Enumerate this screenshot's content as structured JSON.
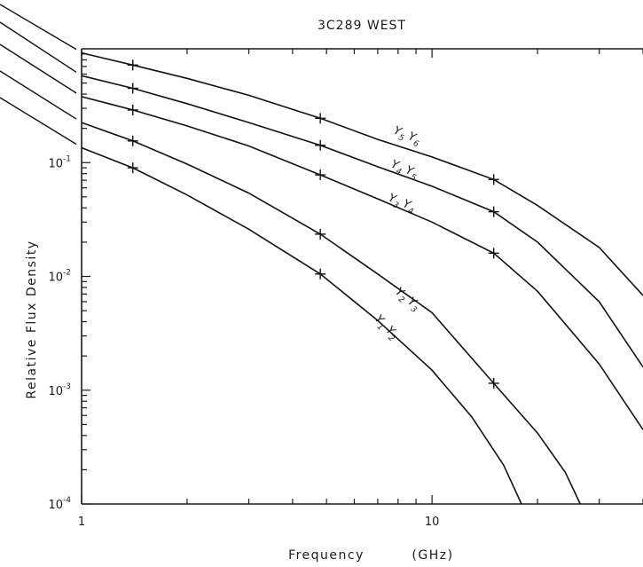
{
  "chart_data": {
    "type": "line",
    "title": "3C289 WEST",
    "xlabel": "Frequency",
    "xunit": "(GHz)",
    "ylabel": "Relative Flux Density",
    "x_scale": "log",
    "y_scale": "log",
    "xlim": [
      1,
      40
    ],
    "ylim": [
      0.0001,
      1
    ],
    "x_ticks": [
      {
        "value": 1,
        "label": "1"
      },
      {
        "value": 10,
        "label": "10"
      }
    ],
    "y_ticks": [
      {
        "value": 0.1,
        "label": "10",
        "exp": "-1"
      },
      {
        "value": 0.01,
        "label": "10",
        "exp": "-2"
      },
      {
        "value": 0.001,
        "label": "10",
        "exp": "-3"
      },
      {
        "value": 0.0001,
        "label": "10",
        "exp": "-4"
      }
    ],
    "series": [
      {
        "label_a": "Y",
        "sub_a": "5",
        "label_b": "Y",
        "sub_b": "6",
        "points": [
          [
            1,
            0.92
          ],
          [
            1.4,
            0.72
          ],
          [
            2,
            0.55
          ],
          [
            3,
            0.39
          ],
          [
            4.8,
            0.245
          ],
          [
            7,
            0.16
          ],
          [
            10,
            0.112
          ],
          [
            15,
            0.071
          ],
          [
            20,
            0.042
          ],
          [
            30,
            0.018
          ],
          [
            40,
            0.0068
          ]
        ],
        "markers": [
          1.4,
          4.8,
          15
        ]
      },
      {
        "label_a": "Y",
        "sub_a": "4",
        "label_b": "Y",
        "sub_b": "5",
        "points": [
          [
            1,
            0.58
          ],
          [
            1.4,
            0.45
          ],
          [
            2,
            0.33
          ],
          [
            3,
            0.225
          ],
          [
            4.8,
            0.142
          ],
          [
            7,
            0.092
          ],
          [
            10,
            0.062
          ],
          [
            15,
            0.037
          ],
          [
            20,
            0.02
          ],
          [
            30,
            0.006
          ],
          [
            40,
            0.0016
          ]
        ],
        "markers": [
          1.4,
          4.8,
          15
        ]
      },
      {
        "label_a": "Y",
        "sub_a": "3",
        "label_b": "Y",
        "sub_b": "4",
        "points": [
          [
            1,
            0.38
          ],
          [
            1.4,
            0.29
          ],
          [
            2,
            0.21
          ],
          [
            3,
            0.14
          ],
          [
            4.8,
            0.078
          ],
          [
            7,
            0.048
          ],
          [
            10,
            0.03
          ],
          [
            15,
            0.016
          ],
          [
            20,
            0.0074
          ],
          [
            30,
            0.0017
          ],
          [
            40,
            0.00045
          ]
        ],
        "markers": [
          1.4,
          4.8,
          15
        ]
      },
      {
        "label_a": "Y",
        "sub_a": "2",
        "label_b": "Y",
        "sub_b": "3",
        "points": [
          [
            1,
            0.225
          ],
          [
            1.4,
            0.155
          ],
          [
            2,
            0.097
          ],
          [
            3,
            0.054
          ],
          [
            4.8,
            0.0235
          ],
          [
            7,
            0.0105
          ],
          [
            10,
            0.0048
          ],
          [
            15,
            0.00115
          ],
          [
            20,
            0.00042
          ],
          [
            24,
            0.00019
          ],
          [
            26.5,
            0.0001
          ]
        ],
        "markers": [
          1.4,
          4.8,
          15
        ]
      },
      {
        "label_a": "Y",
        "sub_a": "1",
        "label_b": "Y",
        "sub_b": "2",
        "points": [
          [
            1,
            0.135
          ],
          [
            1.4,
            0.09
          ],
          [
            2,
            0.052
          ],
          [
            3,
            0.026
          ],
          [
            4.8,
            0.0105
          ],
          [
            7,
            0.0041
          ],
          [
            10,
            0.0015
          ],
          [
            13,
            0.00058
          ],
          [
            16,
            0.00022
          ],
          [
            18,
            0.0001
          ]
        ],
        "markers": [
          1.4,
          4.8
        ]
      }
    ]
  }
}
